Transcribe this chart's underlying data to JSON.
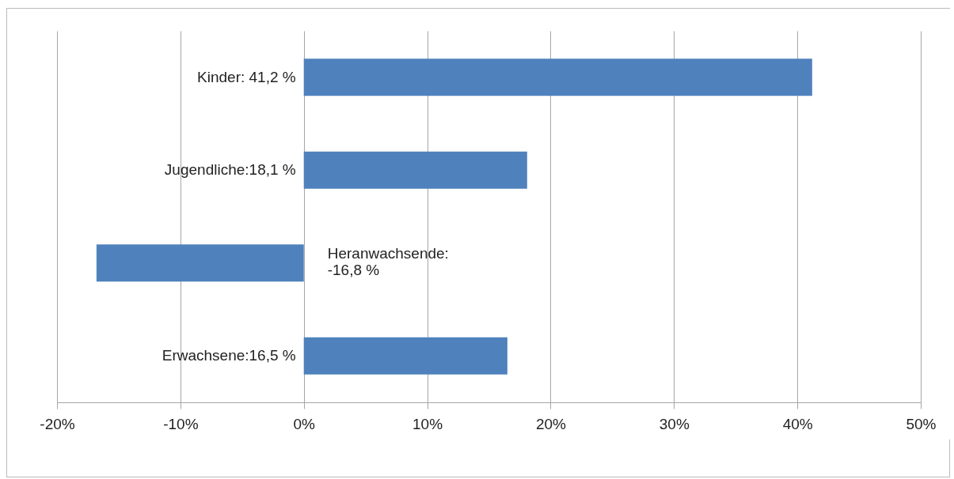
{
  "chart_data": {
    "type": "bar",
    "orientation": "horizontal",
    "categories": [
      "Kinder: 41,2 %",
      "Jugendliche:18,1 %",
      "Heranwachsende:\n-16,8 %",
      "Erwachsene:16,5 %"
    ],
    "values": [
      41.2,
      18.1,
      -16.8,
      16.5
    ],
    "color": "#4f81bd",
    "xlim": [
      -20,
      50
    ],
    "xticks": [
      {
        "value": -20,
        "label": "-20%"
      },
      {
        "value": -10,
        "label": "-10%"
      },
      {
        "value": 0,
        "label": "0%"
      },
      {
        "value": 10,
        "label": "10%"
      },
      {
        "value": 20,
        "label": "20%"
      },
      {
        "value": 30,
        "label": "30%"
      },
      {
        "value": 40,
        "label": "40%"
      },
      {
        "value": 50,
        "label": "50%"
      }
    ],
    "grid": "x",
    "tick_labels": "x",
    "legend": false
  }
}
